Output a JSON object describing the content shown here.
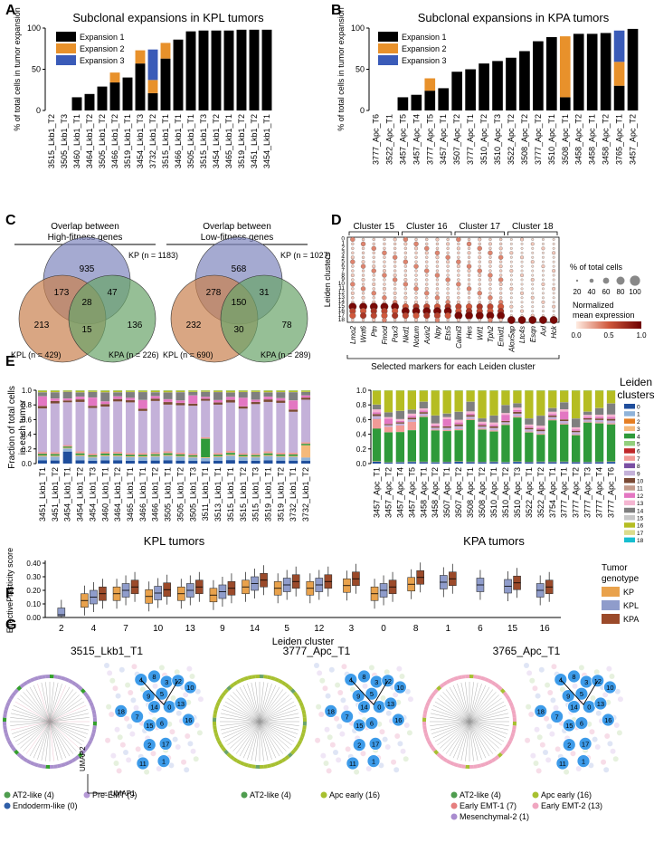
{
  "panel_letters": [
    "A",
    "B",
    "C",
    "D",
    "E",
    "F",
    "G"
  ],
  "colors": {
    "exp1": "#000000",
    "exp2": "#e8912b",
    "exp3": "#3a5bb8",
    "kp": "#e9a24c",
    "kpl": "#8f9ccb",
    "kpa": "#9b4a2a",
    "venn_kp": "#7f86bd",
    "venn_kpl": "#c9804f",
    "venn_kpa": "#6aa469",
    "gray_dot": "#bfbfbf"
  },
  "chart_data": [
    {
      "id": "A",
      "type": "bar",
      "stacked": true,
      "title": "Subclonal expansions in KPL tumors",
      "ylabel": "% of total cells in tumor expansion",
      "ylim": [
        0,
        100
      ],
      "yticks": [
        "0",
        "50",
        "100"
      ],
      "legend": [
        "Expansion 1",
        "Expansion 2",
        "Expansion 3"
      ],
      "categories": [
        "3515_Lkb1_T2",
        "3505_Lkb1_T3",
        "3460_Lkb1_T1",
        "3464_Lkb1_T2",
        "3505_Lkb1_T2",
        "3466_Lkb1_T2",
        "3519_Lkb1_T1",
        "3454_Lkb1_T3",
        "3732_Lkb1_T2",
        "3515_Lkb1_T1",
        "3466_Lkb1_T1",
        "3505_Lkb1_T1",
        "3515_Lkb1_T3",
        "3454_Lkb1_T2",
        "3465_Lkb1_T1",
        "3519_Lkb1_T2",
        "3451_Lkb1_T2",
        "3454_Lkb1_T1"
      ],
      "series": [
        {
          "name": "Expansion 1",
          "values": [
            0,
            0,
            16,
            20,
            29,
            34,
            40,
            57,
            21,
            63,
            86,
            96,
            97,
            97,
            97,
            98,
            98,
            98
          ]
        },
        {
          "name": "Expansion 2",
          "values": [
            0,
            0,
            0,
            0,
            0,
            12,
            0,
            16,
            16,
            19,
            0,
            0,
            0,
            0,
            0,
            0,
            0,
            0
          ]
        },
        {
          "name": "Expansion 3",
          "values": [
            0,
            0,
            0,
            0,
            0,
            0,
            0,
            0,
            37,
            0,
            0,
            0,
            0,
            0,
            0,
            0,
            0,
            0
          ]
        }
      ]
    },
    {
      "id": "B",
      "type": "bar",
      "stacked": true,
      "title": "Subclonal expansions in KPA tumors",
      "ylabel": "% of total cells in tumor expansion",
      "ylim": [
        0,
        100
      ],
      "yticks": [
        "0",
        "50",
        "100"
      ],
      "legend": [
        "Expansion 1",
        "Expansion 2",
        "Expansion 3"
      ],
      "categories": [
        "3777_Apc_T6",
        "3522_Apc_T1",
        "3457_Apc_T5",
        "3457_Apc_T4",
        "3777_Apc_T5",
        "3457_Apc_T1",
        "3507_Apc_T2",
        "3777_Apc_T1",
        "3510_Apc_T2",
        "3510_Apc_T3",
        "3522_Apc_T2",
        "3508_Apc_T2",
        "3777_Apc_T2",
        "3510_Apc_T1",
        "3508_Apc_T1",
        "3458_Apc_T2",
        "3458_Apc_T1",
        "3458_Apc_T2",
        "3765_Apc_T1",
        "3457_Apc_T2"
      ],
      "series": [
        {
          "name": "Expansion 1",
          "values": [
            0,
            0,
            16,
            19,
            24,
            27,
            47,
            50,
            57,
            60,
            64,
            72,
            84,
            89,
            16,
            93,
            93,
            94,
            30,
            99
          ]
        },
        {
          "name": "Expansion 2",
          "values": [
            0,
            0,
            0,
            0,
            15,
            0,
            0,
            0,
            0,
            0,
            0,
            0,
            0,
            0,
            74,
            0,
            0,
            0,
            29,
            0
          ]
        },
        {
          "name": "Expansion 3",
          "values": [
            0,
            0,
            0,
            0,
            0,
            0,
            0,
            0,
            0,
            0,
            0,
            0,
            0,
            0,
            0,
            0,
            0,
            0,
            38,
            0
          ]
        }
      ]
    },
    {
      "id": "C1",
      "type": "venn",
      "title": "Overlap between High-fitness genes",
      "title_lines": [
        "Overlap between",
        "High-fitness genes"
      ],
      "sets": [
        {
          "name": "KP",
          "label": "KP (n = 1183)"
        },
        {
          "name": "KPL",
          "label": "KPL (n = 429)"
        },
        {
          "name": "KPA",
          "label": "KPA (n = 226)"
        }
      ],
      "regions": {
        "KP_only": "935",
        "KPL_only": "213",
        "KPA_only": "136",
        "KP_KPL": "173",
        "KP_KPA": "47",
        "KPL_KPA": "15",
        "all": "28"
      }
    },
    {
      "id": "C2",
      "type": "venn",
      "title": "Overlap between Low-fitness genes",
      "title_lines": [
        "Overlap between",
        "Low-fitness genes"
      ],
      "sets": [
        {
          "name": "KP",
          "label": "KP (n = 1027)"
        },
        {
          "name": "KPL",
          "label": "KPL (n = 690)"
        },
        {
          "name": "KPA",
          "label": "KPA (n = 289)"
        }
      ],
      "regions": {
        "KP_only": "568",
        "KPL_only": "232",
        "KPA_only": "78",
        "KP_KPL": "278",
        "KP_KPA": "31",
        "KPL_KPA": "30",
        "all": "150"
      }
    },
    {
      "id": "D",
      "type": "dotplot",
      "ylabel": "Leiden clusters",
      "xlabel": "Selected markers for each Leiden cluster",
      "groups": [
        {
          "label": "Cluster 15",
          "genes": [
            "Lmo2",
            "Wnt6",
            "Ptn",
            "Fmod",
            "Pax3"
          ]
        },
        {
          "label": "Cluster 16",
          "genes": [
            "Nkd1",
            "Notum",
            "Axin2",
            "Npy",
            "Ets5"
          ]
        },
        {
          "label": "Cluster 17",
          "genes": [
            "Calml3",
            "Hes",
            "Wif1",
            "Tph2",
            "Emid1"
          ]
        },
        {
          "label": "Cluster 18",
          "genes": [
            "Alox5ap",
            "Ltc4s",
            "Esqn",
            "Axl",
            "Hck"
          ]
        }
      ],
      "genes": [
        "Lmo2",
        "Wnt6",
        "Ptn",
        "Fmod",
        "Pax3",
        "Nkd1",
        "Notum",
        "Axin2",
        "Npy",
        "Ets5",
        "Calml3",
        "Hes",
        "Wif1",
        "Tph2",
        "Emid1",
        "Alox5ap",
        "Ltc4s",
        "Esqn",
        "Axl",
        "Hck"
      ],
      "rows": [
        "0",
        "1",
        "2",
        "3",
        "4",
        "5",
        "6",
        "7",
        "8",
        "9",
        "10",
        "11",
        "12",
        "13",
        "14",
        "15",
        "16",
        "17",
        "18"
      ],
      "size_legend_title": "% of total cells",
      "size_legend": [
        "20",
        "40",
        "60",
        "80",
        "100"
      ],
      "color_legend_title": [
        "Normalized",
        "mean expression"
      ],
      "color_ticks": [
        "0.0",
        "0.5",
        "1.0"
      ]
    },
    {
      "id": "E",
      "type": "bar",
      "stacked": true,
      "ylabel": "Fraction of total cells in each tumor",
      "yticks": [
        "0.0",
        "0.2",
        "0.4",
        "0.6",
        "0.8",
        "1.0"
      ],
      "groups": [
        {
          "label": "KPL tumors",
          "categories": [
            "3451_Lkb1_T1",
            "3451_Lkb1_T2",
            "3454_Lkb1_T1",
            "3454_Lkb1_T2",
            "3454_Lkb1_T3",
            "3460_Lkb1_T1",
            "3464_Lkb1_T2",
            "3465_Lkb1_T1",
            "3466_Lkb1_T1",
            "3466_Lkb1_T2",
            "3505_Lkb1_T1",
            "3505_Lkb1_T2",
            "3505_Lkb1_T3",
            "3511_Lkb1_T1",
            "3513_Lkb1_T1",
            "3515_Lkb1_T1",
            "3515_Lkb1_T2",
            "3515_Lkb1_T3",
            "3519_Lkb1_T1",
            "3519_Lkb1_T2",
            "3732_Lkb1_T1",
            "3732_Lkb1_T2"
          ]
        },
        {
          "label": "KPA tumors",
          "categories": [
            "3457_Apc_T1",
            "3457_Apc_T2",
            "3457_Apc_T4",
            "3457_Apc_T5",
            "3458_Apc_T1",
            "3458_Apc_T2",
            "3507_Apc_T1",
            "3507_Apc_T2",
            "3508_Apc_T1",
            "3508_Apc_T2",
            "3510_Apc_T1",
            "3510_Apc_T2",
            "3510_Apc_T3",
            "3522_Apc_T1",
            "3522_Apc_T2",
            "3754_Apc_T1",
            "3777_Apc_T1",
            "3777_Apc_T2",
            "3777_Apc_T3",
            "3777_Apc_T4",
            "3777_Apc_T6"
          ]
        }
      ],
      "legend_title": [
        "Leiden",
        "clusters"
      ],
      "legend": [
        "0",
        "1",
        "2",
        "3",
        "4",
        "5",
        "6",
        "7",
        "8",
        "9",
        "10",
        "11",
        "12",
        "13",
        "14",
        "15",
        "16",
        "17",
        "18"
      ],
      "legend_colors": [
        "#1f4e9c",
        "#8fb3d9",
        "#e57e22",
        "#f5b97a",
        "#2f9a3a",
        "#93cf7d",
        "#c0282a",
        "#f29b97",
        "#7a4fa3",
        "#c4b1d9",
        "#7a4a35",
        "#c39b8b",
        "#e377c2",
        "#f5b6d2",
        "#7f7f7f",
        "#c7c7c7",
        "#b5bd22",
        "#dbdc8d",
        "#17becf"
      ]
    },
    {
      "id": "F",
      "type": "box",
      "ylabel": "EffectivePlasticity score",
      "xlabel": "Leiden cluster",
      "ylim": [
        0,
        0.4
      ],
      "yticks": [
        "0.00",
        "0.10",
        "0.20",
        "0.30",
        "0.40"
      ],
      "categories": [
        "2",
        "4",
        "7",
        "10",
        "13",
        "9",
        "14",
        "5",
        "12",
        "3",
        "0",
        "8",
        "1",
        "6",
        "15",
        "16"
      ],
      "legend_title": [
        "Tumor",
        "genotype"
      ],
      "legend": [
        "KP",
        "KPL",
        "KPA"
      ]
    },
    {
      "id": "G",
      "type": "scatter",
      "panels": [
        {
          "title": "3515_Lkb1_T1",
          "legend": [
            "AT2-like (4)",
            "Pre-EMT (9)",
            "Endoderm-like (0)"
          ]
        },
        {
          "title": "3777_Apc_T1",
          "legend": [
            "AT2-like (4)",
            "Apc early (16)"
          ]
        },
        {
          "title": "3765_Apc_T1",
          "legend": [
            "AT2-like (4)",
            "Apc early (16)",
            "Early EMT-1 (7)",
            "Early EMT-2 (13)",
            "Mesenchymal-2 (1)"
          ]
        }
      ],
      "axis_labels": {
        "x": "UMAP1",
        "y": "UMAP2"
      },
      "node_labels": [
        "4",
        "8",
        "3",
        "12",
        "5",
        "10",
        "9",
        "14",
        "0",
        "18",
        "7",
        "15",
        "6",
        "2",
        "11",
        "1",
        "17",
        "13",
        "16"
      ]
    }
  ]
}
